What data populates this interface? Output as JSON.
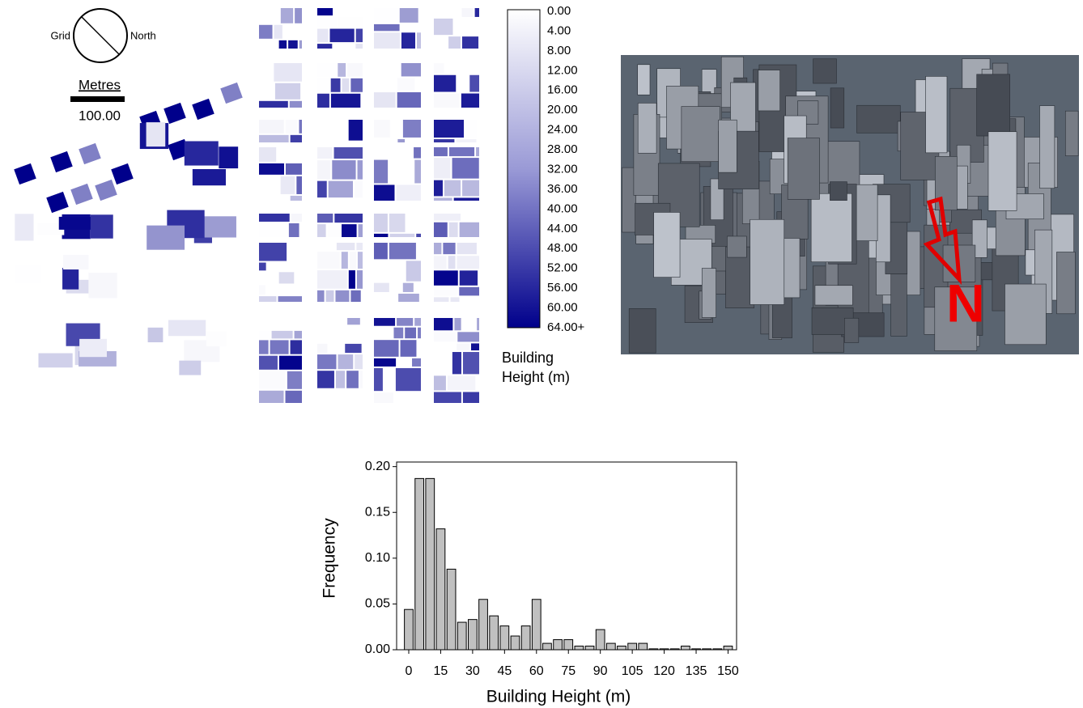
{
  "map": {
    "compass_left": "Grid",
    "compass_right": "North",
    "scale_unit": "Metres",
    "scale_value": "100.00",
    "legend_labels": [
      "0.00",
      "4.00",
      "8.00",
      "12.00",
      "16.00",
      "20.00",
      "24.00",
      "28.00",
      "32.00",
      "36.00",
      "40.00",
      "44.00",
      "48.00",
      "52.00",
      "56.00",
      "60.00",
      "64.00+"
    ],
    "legend_title": [
      "Building",
      "Height (m)"
    ]
  },
  "photo": {
    "north_label": "N"
  },
  "chart_data": {
    "type": "histogram",
    "xlabel": "Building Height (m)",
    "ylabel": "Frequency",
    "color": "#c0c0c0",
    "bins": [
      -2.5,
      2.5,
      7.5,
      12.5,
      17.5,
      22.5,
      27.5,
      32.5,
      37.5,
      42.5,
      47.5,
      52.5,
      57.5,
      62.5,
      67.5,
      72.5,
      77.5,
      82.5,
      87.5,
      92.5,
      97.5,
      102.5,
      107.5,
      112.5,
      117.5,
      122.5,
      127.5,
      132.5,
      137.5,
      142.5,
      147.5,
      152.5
    ],
    "values": [
      0.044,
      0.187,
      0.187,
      0.132,
      0.088,
      0.03,
      0.033,
      0.055,
      0.037,
      0.026,
      0.015,
      0.026,
      0.055,
      0.007,
      0.011,
      0.011,
      0.004,
      0.004,
      0.022,
      0.007,
      0.004,
      0.007,
      0.007,
      0.001,
      0.001,
      0.001,
      0.004,
      0.001,
      0.001,
      0.001,
      0.004
    ],
    "xlim": [
      -5.7,
      154
    ],
    "ylim": [
      0,
      0.205
    ],
    "xticks": [
      0,
      15,
      30,
      45,
      60,
      75,
      90,
      105,
      120,
      135,
      150
    ],
    "yticks": [
      {
        "value": 0,
        "label": "0.00"
      },
      {
        "value": 0.05,
        "label": "0.05"
      },
      {
        "value": 0.1,
        "label": "0.10"
      },
      {
        "value": 0.15,
        "label": "0.15"
      },
      {
        "value": 0.2,
        "label": "0.20"
      }
    ]
  }
}
